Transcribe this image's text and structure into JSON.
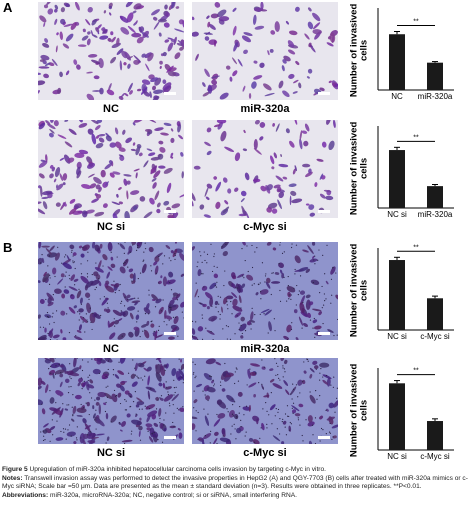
{
  "panels": [
    {
      "label": "A",
      "images": [
        "NC",
        "miR-320a",
        "NC si",
        "c-Myc si"
      ]
    },
    {
      "label": "B",
      "images": [
        "NC",
        "miR-320a",
        "NC si",
        "c-Myc si"
      ]
    }
  ],
  "chart_data": [
    {
      "type": "bar",
      "ylabel": "Number of invasived cells",
      "categories": [
        "NC",
        "miR-320a"
      ],
      "values": [
        102,
        50
      ],
      "errors": [
        5,
        2
      ],
      "annotation": "**",
      "color": "#1a1a1a",
      "ylim": [
        0,
        150
      ]
    },
    {
      "type": "bar",
      "ylabel": "Number of invasived cells",
      "categories": [
        "NC si",
        "miR-320a"
      ],
      "values": [
        106,
        40
      ],
      "errors": [
        5,
        3
      ],
      "annotation": "**",
      "color": "#1a1a1a",
      "ylim": [
        0,
        150
      ]
    },
    {
      "type": "bar",
      "ylabel": "Number of invasived cells",
      "categories": [
        "NC si",
        "c-Myc si"
      ],
      "values": [
        128,
        58
      ],
      "errors": [
        5,
        4
      ],
      "annotation": "**",
      "color": "#1a1a1a",
      "ylim": [
        0,
        150
      ]
    },
    {
      "type": "bar",
      "ylabel": "Number of invasived cells",
      "categories": [
        "NC si",
        "c-Myc si"
      ],
      "values": [
        122,
        53
      ],
      "errors": [
        5,
        4
      ],
      "annotation": "**",
      "color": "#1a1a1a",
      "ylim": [
        0,
        150
      ]
    }
  ],
  "caption": {
    "figure_label": "Figure 5",
    "title": "Upregulation of miR-320a inhibited hepatocellular carcinoma cells invasion by targeting c-Myc in vitro.",
    "notes_label": "Notes:",
    "notes": "Transwell invasion assay was performed to detect the invasive properties in HepG2 (A) and QGY-7703 (B) cells after treated with miR-320a mimics or c-Myc siRNA; Scale bar =50 μm. Data are presented as the mean ± standard deviation (n=3). Results were obtained in three replicates. **P<0.01.",
    "abbreviations_label": "Abbreviations:",
    "abbreviations": "miR-320a, microRNA-320a; NC, negative control; si or siRNA, small interfering RNA."
  }
}
